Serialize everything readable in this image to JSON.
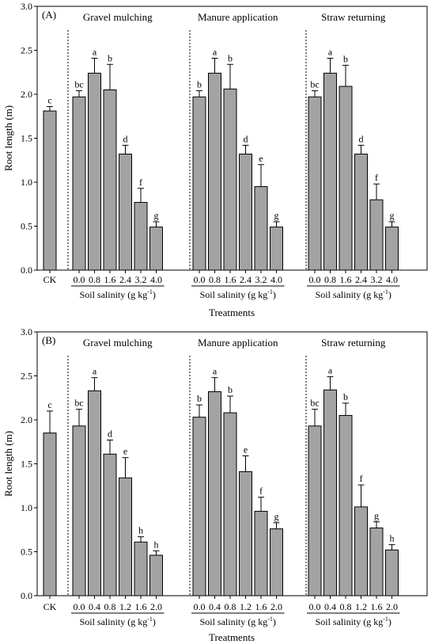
{
  "chart_data": [
    {
      "type": "bar",
      "panel_label": "(A)",
      "ylabel": "Root length (m)",
      "xlabel": "Treatments",
      "ylim": [
        0,
        3.0
      ],
      "yticks": [
        "0.0",
        "0.5",
        "1.0",
        "1.5",
        "2.0",
        "2.5",
        "3.0"
      ],
      "group_xlabel": "Soil salinity (g kg",
      "group_xlabel_sup": "-1",
      "group_xlabel_end": ")",
      "control": {
        "label": "CK",
        "value": 1.81,
        "error": 0.05,
        "letter": "c"
      },
      "groups": [
        {
          "name": "Gravel mulching",
          "categories": [
            "0.0",
            "0.8",
            "1.6",
            "2.4",
            "3.2",
            "4.0"
          ],
          "values": [
            1.97,
            2.24,
            2.05,
            1.32,
            0.77,
            0.49
          ],
          "errors": [
            0.07,
            0.17,
            0.29,
            0.1,
            0.16,
            0.06
          ],
          "letters": [
            "bc",
            "a",
            "b",
            "d",
            "f",
            "g"
          ]
        },
        {
          "name": "Manure application",
          "categories": [
            "0.0",
            "0.8",
            "1.6",
            "2.4",
            "3.2",
            "4.0"
          ],
          "values": [
            1.97,
            2.24,
            2.06,
            1.32,
            0.95,
            0.49
          ],
          "errors": [
            0.07,
            0.17,
            0.28,
            0.1,
            0.25,
            0.06
          ],
          "letters": [
            "b",
            "a",
            "b",
            "d",
            "e",
            "g"
          ]
        },
        {
          "name": "Straw returning",
          "categories": [
            "0.0",
            "0.8",
            "1.6",
            "2.4",
            "3.2",
            "4.0"
          ],
          "values": [
            1.97,
            2.24,
            2.09,
            1.32,
            0.8,
            0.49
          ],
          "errors": [
            0.07,
            0.17,
            0.24,
            0.1,
            0.18,
            0.06
          ],
          "letters": [
            "bc",
            "a",
            "b",
            "d",
            "f",
            "g"
          ]
        }
      ]
    },
    {
      "type": "bar",
      "panel_label": "(B)",
      "ylabel": "Root length (m)",
      "xlabel": "Treatments",
      "ylim": [
        0,
        3.0
      ],
      "yticks": [
        "0.0",
        "0.5",
        "1.0",
        "1.5",
        "2.0",
        "2.5",
        "3.0"
      ],
      "group_xlabel": "Soil salinity (g kg",
      "group_xlabel_sup": "-1",
      "group_xlabel_end": ")",
      "control": {
        "label": "CK",
        "value": 1.85,
        "error": 0.25,
        "letter": "c"
      },
      "groups": [
        {
          "name": "Gravel mulching",
          "categories": [
            "0.0",
            "0.4",
            "0.8",
            "1.2",
            "1.6",
            "2.0"
          ],
          "values": [
            1.93,
            2.33,
            1.61,
            1.34,
            0.61,
            0.46
          ],
          "errors": [
            0.19,
            0.15,
            0.16,
            0.23,
            0.06,
            0.05
          ],
          "letters": [
            "bc",
            "a",
            "d",
            "e",
            "h",
            "h"
          ]
        },
        {
          "name": "Manure application",
          "categories": [
            "0.0",
            "0.4",
            "0.8",
            "1.2",
            "1.6",
            "2.0"
          ],
          "values": [
            2.03,
            2.32,
            2.08,
            1.41,
            0.96,
            0.76
          ],
          "errors": [
            0.14,
            0.16,
            0.19,
            0.18,
            0.16,
            0.07
          ],
          "letters": [
            "b",
            "a",
            "b",
            "e",
            "f",
            "g"
          ]
        },
        {
          "name": "Straw returning",
          "categories": [
            "0.0",
            "0.4",
            "0.8",
            "1.2",
            "1.6",
            "2.0"
          ],
          "values": [
            1.93,
            2.34,
            2.05,
            1.01,
            0.77,
            0.52
          ],
          "errors": [
            0.19,
            0.15,
            0.14,
            0.25,
            0.07,
            0.06
          ],
          "letters": [
            "bc",
            "a",
            "b",
            "f",
            "g",
            "h"
          ]
        }
      ]
    }
  ]
}
